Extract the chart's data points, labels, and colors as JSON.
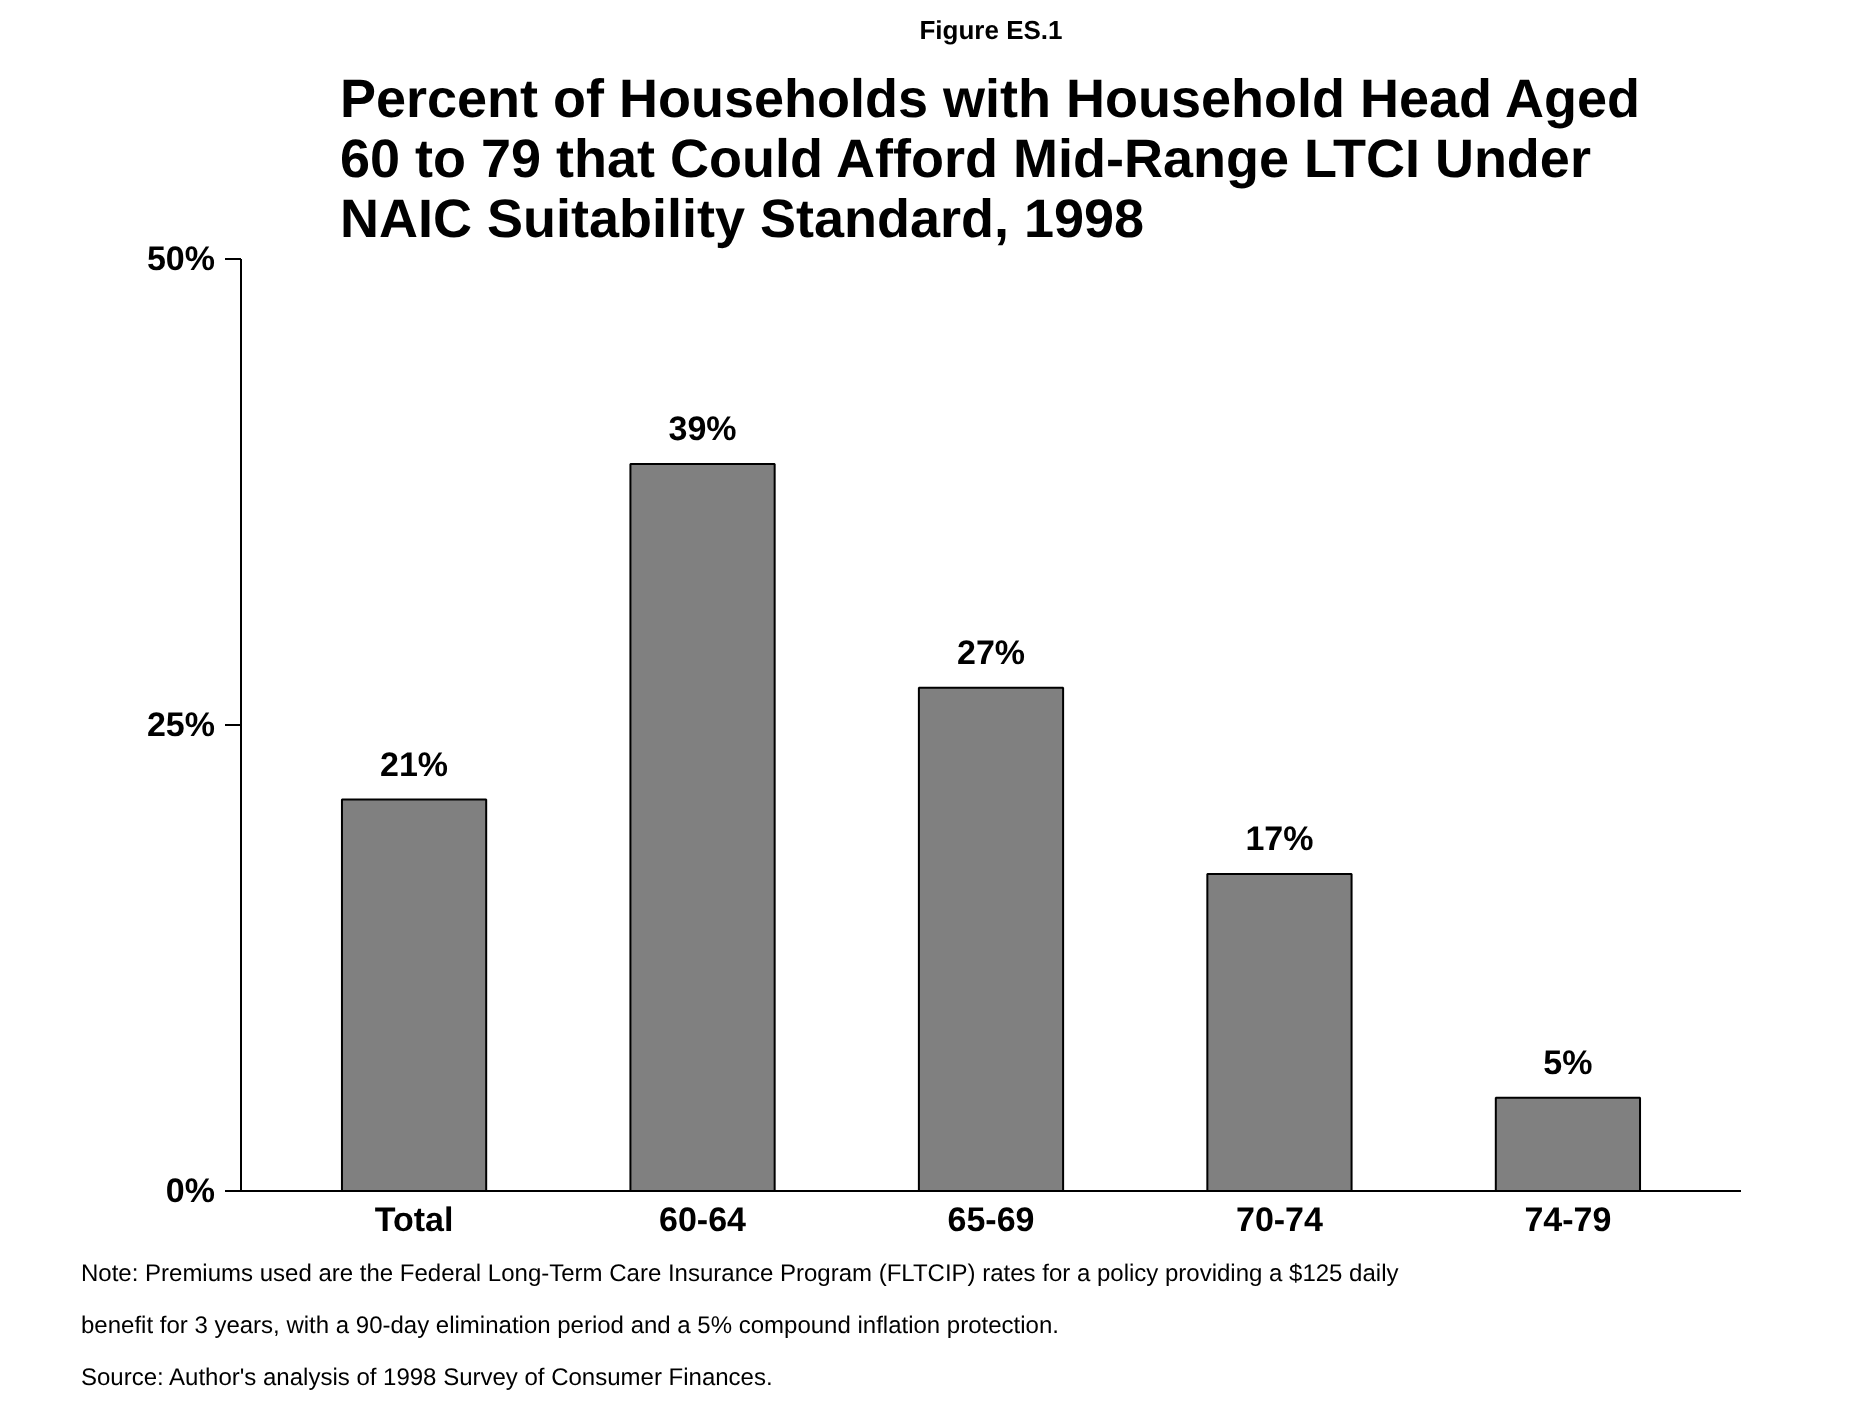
{
  "chart_data": {
    "type": "bar",
    "subtitle": "Figure ES.1",
    "title": "Percent of Households with Household Head Aged 60 to 79 that Could Afford Mid-Range LTCI Under NAIC Suitability Standard, 1998",
    "categories": [
      "Total",
      "60-64",
      "65-69",
      "70-74",
      "74-79"
    ],
    "values": [
      21,
      39,
      27,
      17,
      5
    ],
    "value_labels": [
      "21%",
      "39%",
      "27%",
      "17%",
      "5%"
    ],
    "color": "#808080",
    "ylim": [
      0,
      50
    ],
    "yticks": [
      {
        "value": 0,
        "label": "0%"
      },
      {
        "value": 25,
        "label": "25%"
      },
      {
        "value": 50,
        "label": "50%"
      }
    ],
    "grid": false,
    "annotations": [
      "Note: Premiums used are the Federal Long-Term Care Insurance Program (FLTCIP) rates for a policy providing a $125 daily benefit for 3 years, with a 90-day elimination period and a 5% compound inflation protection.",
      "Source: Author's analysis of 1998 Survey of Consumer Finances."
    ]
  }
}
